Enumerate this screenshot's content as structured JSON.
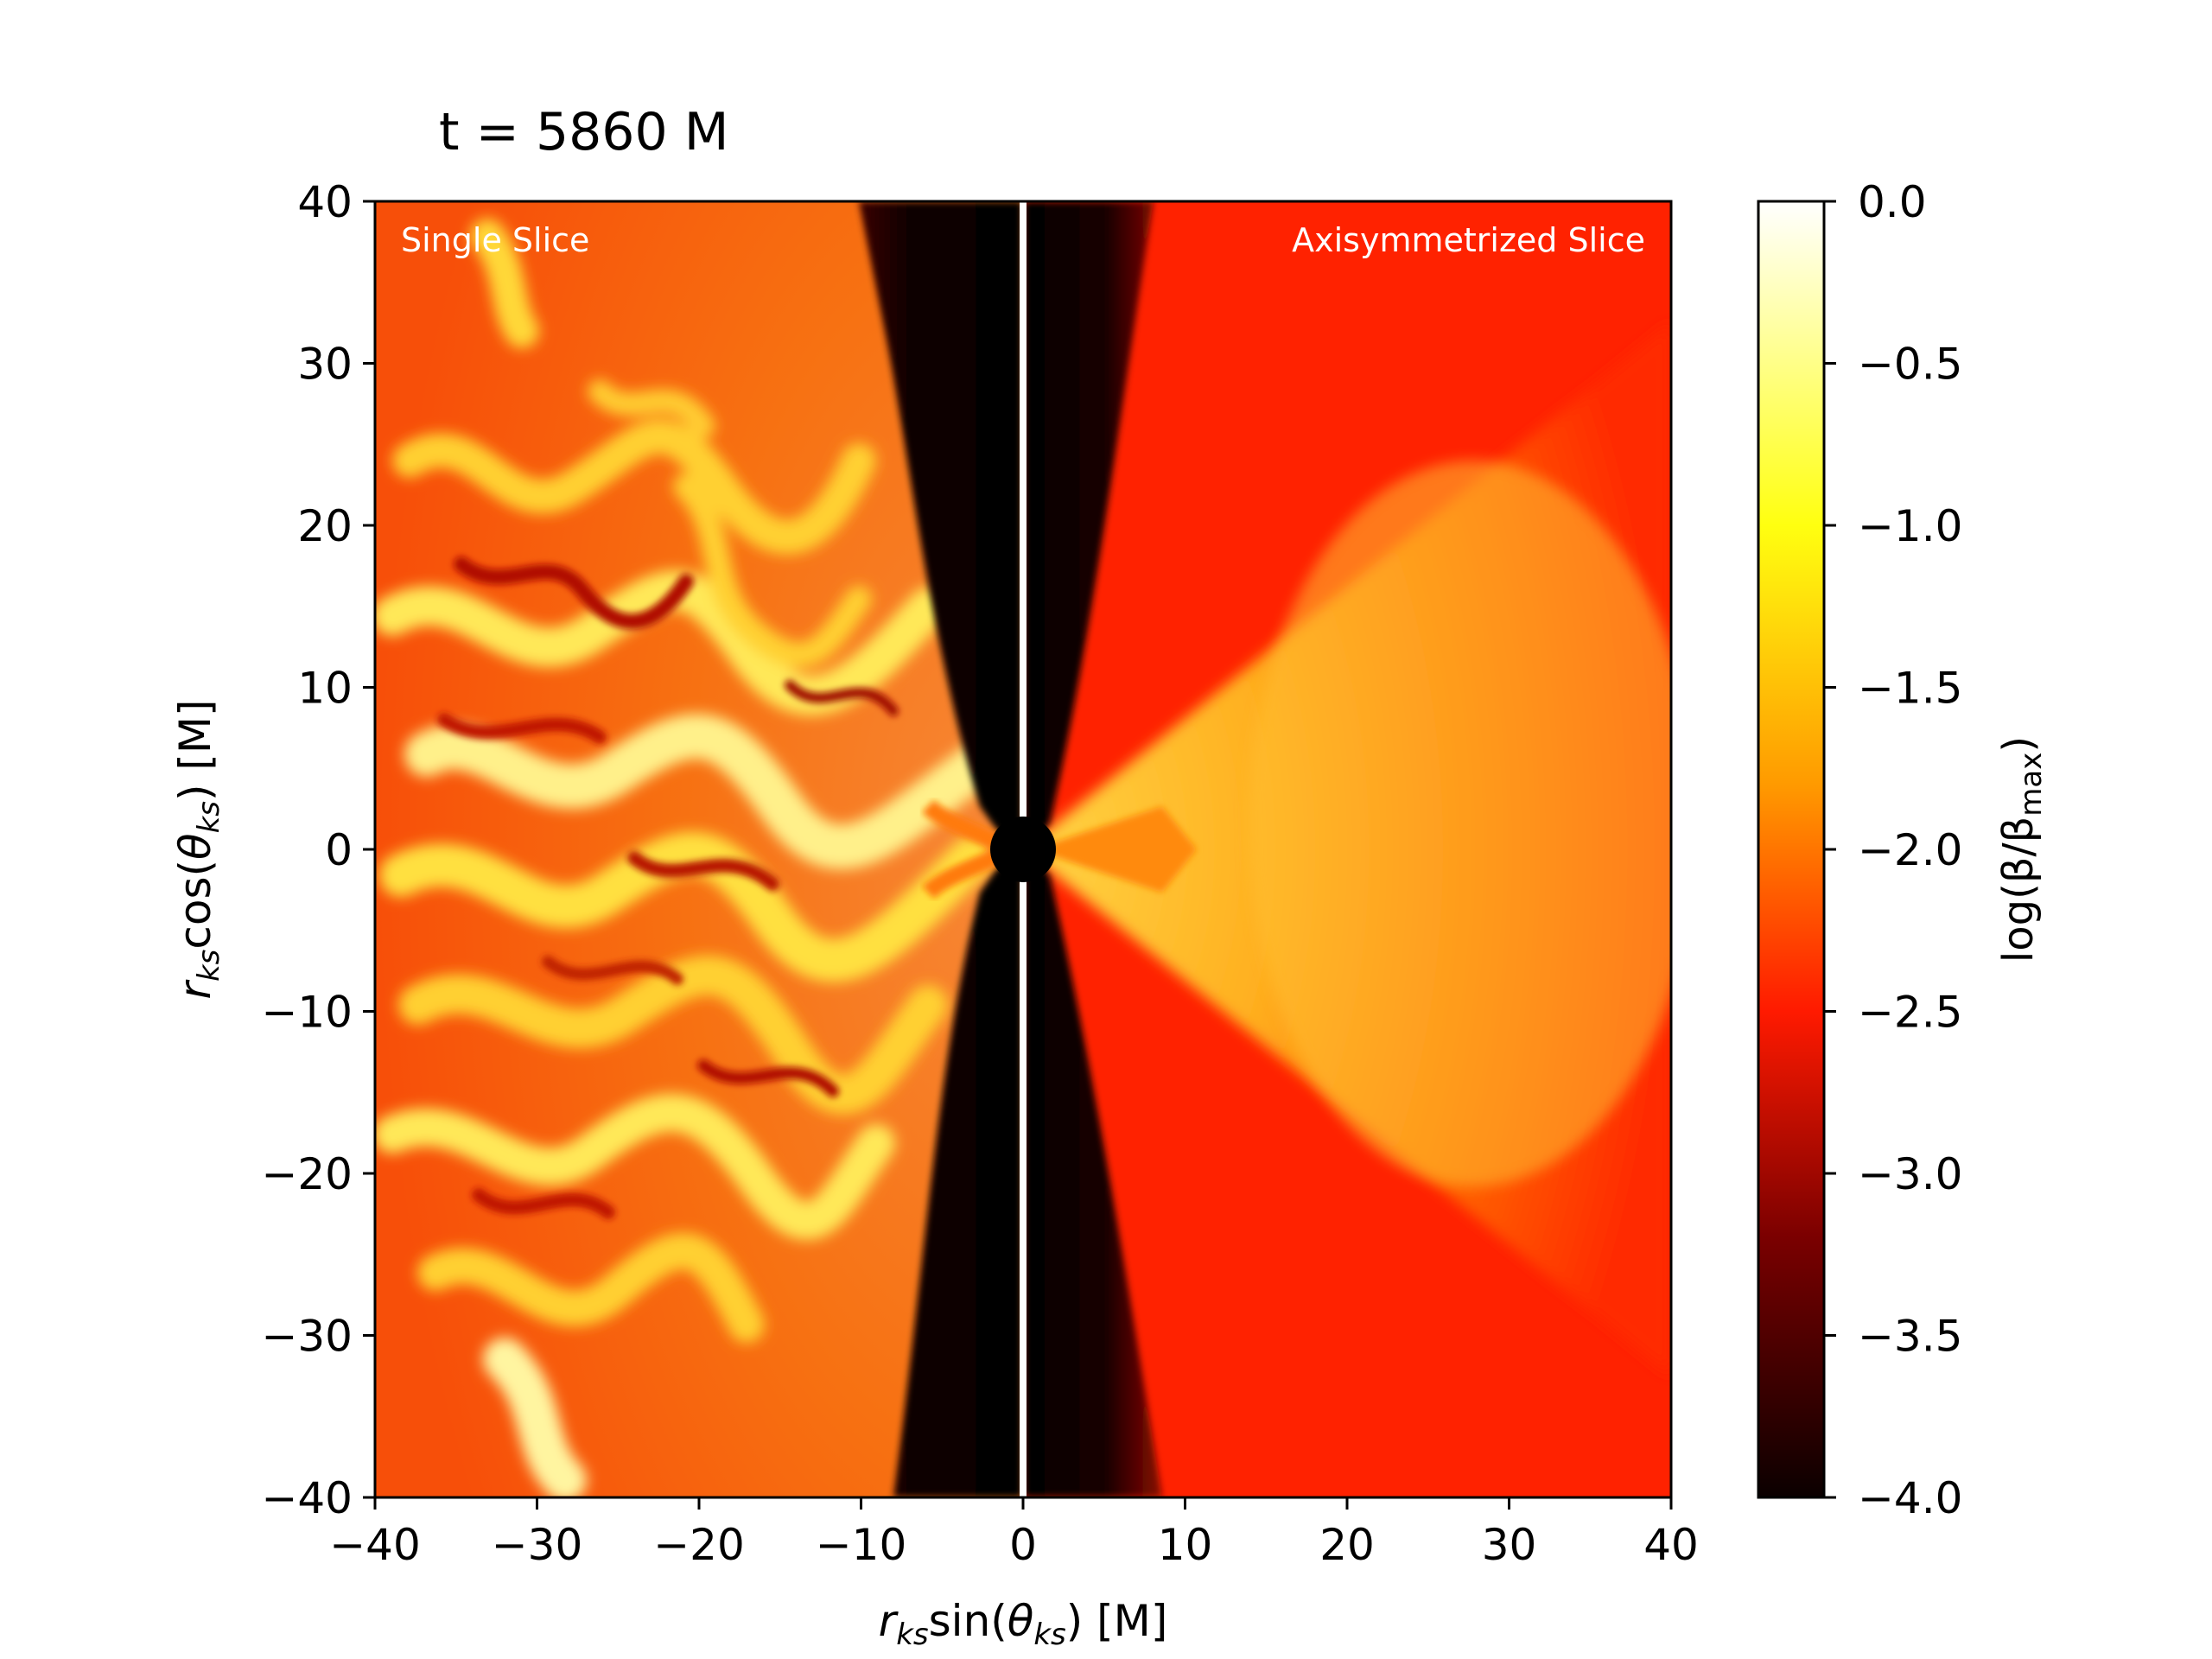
{
  "chart_data": {
    "type": "heatmap",
    "title": "t = 5860 M",
    "xlabel": "r_ks sin(θ_ks) [M]",
    "ylabel": "r_ks cos(θ_ks) [M]",
    "xlim": [
      -40,
      40
    ],
    "ylim": [
      -40,
      40
    ],
    "xticks": [
      -40,
      -30,
      -20,
      -10,
      0,
      10,
      20,
      30,
      40
    ],
    "yticks": [
      -40,
      -30,
      -20,
      -10,
      0,
      10,
      20,
      30,
      40
    ],
    "xtick_labels": [
      "−40",
      "−30",
      "−20",
      "−10",
      "0",
      "10",
      "20",
      "30",
      "40"
    ],
    "ytick_labels": [
      "−40",
      "−30",
      "−20",
      "−10",
      "0",
      "10",
      "20",
      "30",
      "40"
    ],
    "panels": [
      {
        "name": "Single Slice",
        "side": "left"
      },
      {
        "name": "Axisymmetrized Slice",
        "side": "right"
      }
    ],
    "black_hole": {
      "x": 0,
      "y": 0,
      "radius": 2
    },
    "divider_x": 0,
    "colorbar": {
      "label": "log(β/β_max)",
      "colormap": "hot",
      "range": [
        -4.0,
        0.0
      ],
      "ticks": [
        0.0,
        -0.5,
        -1.0,
        -1.5,
        -2.0,
        -2.5,
        -3.0,
        -3.5,
        -4.0
      ],
      "tick_labels": [
        "0.0",
        "−0.5",
        "−1.0",
        "−1.5",
        "−2.0",
        "−2.5",
        "−3.0",
        "−3.5",
        "−4.0"
      ]
    },
    "grid": false
  }
}
